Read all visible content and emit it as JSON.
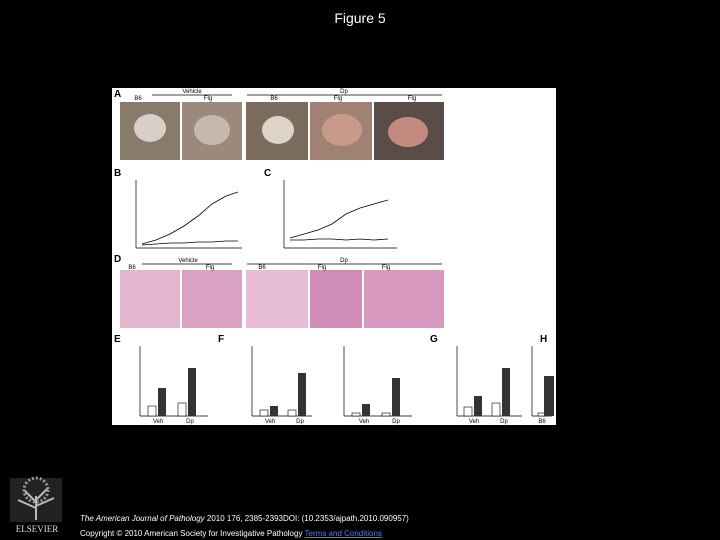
{
  "title": "Figure 5",
  "figure": {
    "panels": [
      "A",
      "B",
      "C",
      "D",
      "E",
      "F",
      "G",
      "H"
    ],
    "labels": {
      "vehicle_a": "Vehicle",
      "dp_a": "Dp",
      "b6": "B6",
      "flg": "Flg",
      "vehicle_d": "Vehicle",
      "dp_d": "Dp",
      "veh": "Veh",
      "dp": "Dp"
    }
  },
  "logo": "ELSEVIER",
  "footer": {
    "journal": "The American Journal of Pathology",
    "citation": " 2010 176, 2385-2393DOI: (10.2353/ajpath.2010.090957)",
    "copyright": "Copyright © 2010 American Society for Investigative Pathology",
    "link": "Terms and Conditions"
  }
}
